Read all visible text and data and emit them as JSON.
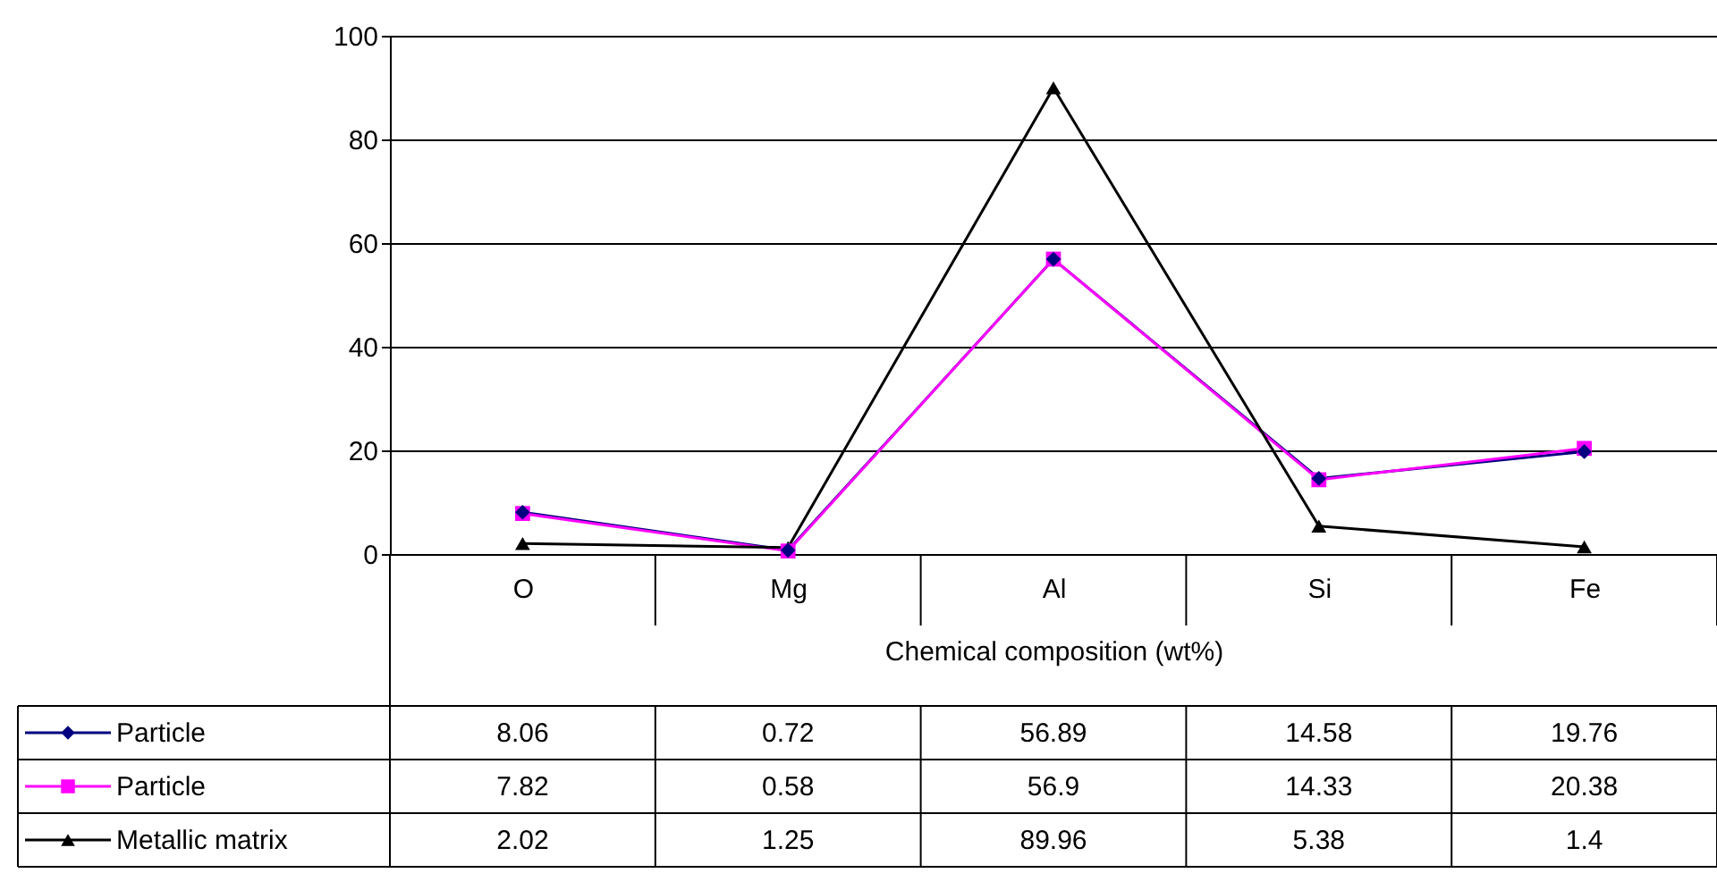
{
  "chart_data": {
    "type": "line",
    "xlabel": "Chemical composition (wt%)",
    "categories": [
      "O",
      "Mg",
      "Al",
      "Si",
      "Fe"
    ],
    "series": [
      {
        "name": "Particle",
        "color": "#000080",
        "marker": "diamond",
        "values": [
          8.06,
          0.72,
          56.89,
          14.58,
          19.76
        ]
      },
      {
        "name": "Particle",
        "color": "#ff00ff",
        "marker": "square",
        "values": [
          7.82,
          0.58,
          56.9,
          14.33,
          20.38
        ]
      },
      {
        "name": "Metallic matrix",
        "color": "#000000",
        "marker": "triangle",
        "values": [
          2.02,
          1.25,
          89.96,
          5.38,
          1.4
        ]
      }
    ],
    "ylim": [
      0,
      100
    ],
    "yticks": [
      0,
      20,
      40,
      60,
      80,
      100
    ],
    "grid": "y",
    "legend": "bottom left",
    "data_labels": true
  }
}
